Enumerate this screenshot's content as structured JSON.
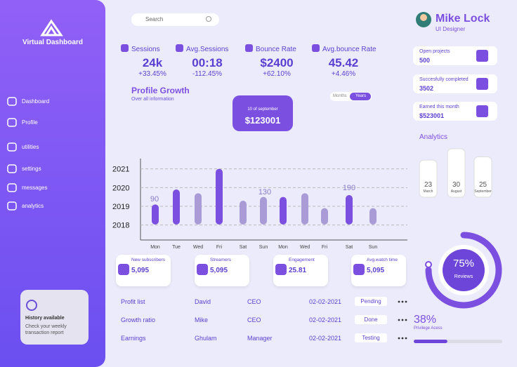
{
  "sidebar": {
    "brand": "Virtual Dashboard",
    "nav": [
      "Dashboard",
      "Profile",
      "utilities",
      "settings",
      "messages",
      "analytics"
    ],
    "history": {
      "title": "History available",
      "text": "Check your weekly transaction report"
    }
  },
  "search": {
    "placeholder": "Search"
  },
  "stats": [
    {
      "label": "Sessions",
      "value": "24k",
      "change": "+33.45%"
    },
    {
      "label": "Avg.Sessions",
      "value": "00:18",
      "change": "-112.45%"
    },
    {
      "label": "Bounce Rate",
      "value": "$2400",
      "change": "+62.10%"
    },
    {
      "label": "Avg.bounce Rate",
      "value": "45.42",
      "change": "+4.46%"
    }
  ],
  "profile_growth": {
    "title": "Profile Growth",
    "subtitle": "Over all information",
    "toggle": [
      "Months",
      "Years"
    ],
    "tooltip": {
      "date": "10 of september",
      "value": "$123001"
    }
  },
  "chart_data": {
    "type": "bar",
    "categories": [
      "Mon",
      "Tue",
      "Wed",
      "Fri",
      "Sat",
      "Sun",
      "Mon",
      "Wed",
      "Fri",
      "Sat",
      "Sun"
    ],
    "values": [
      2019.1,
      2019.9,
      2019.7,
      2021.0,
      2019.3,
      2019.5,
      2019.5,
      2019.7,
      2018.9,
      2019.6,
      2018.9
    ],
    "colors": [
      "#7b4fe0",
      "#7b4fe0",
      "#a99bd6",
      "#7b4fe0",
      "#a99bd6",
      "#a99bd6",
      "#7b4fe0",
      "#a99bd6",
      "#a99bd6",
      "#7b4fe0",
      "#a99bd6"
    ],
    "ylim": [
      2017.2,
      2021.55
    ],
    "yticks": [
      2018,
      2019,
      2020,
      2021
    ],
    "grid": true,
    "annotations": [
      "90",
      "130",
      "190"
    ]
  },
  "metrics": [
    {
      "title": "New subscribers",
      "value": "5,095"
    },
    {
      "title": "Streamers",
      "value": "5,095"
    },
    {
      "title": "Engagement",
      "value": "25.81"
    },
    {
      "title": "Avg.watch time",
      "value": "5,095"
    }
  ],
  "table": {
    "rows": [
      [
        "Profit list",
        "David",
        "CEO",
        "02-02-2021",
        "Pending"
      ],
      [
        "Growth ratio",
        "Mike",
        "CEO",
        "02-02-2021",
        "Done"
      ],
      [
        "Earnings",
        "Ghulam",
        "Manager",
        "02-02-2021",
        "Testing"
      ]
    ]
  },
  "profile": {
    "name": "Mike Lock",
    "role": "UI Designer"
  },
  "summary": [
    {
      "label": "Open projects",
      "value": "500"
    },
    {
      "label": "Succesfully completed",
      "value": "3502"
    },
    {
      "label": "Earned this month",
      "value": "$523001"
    }
  ],
  "analytics": {
    "title": "Analytics",
    "bars": [
      {
        "value": 23,
        "label": "March"
      },
      {
        "value": 30,
        "label": "August"
      },
      {
        "value": 25,
        "label": "September"
      }
    ]
  },
  "reviews": {
    "value": 75,
    "value_label": "75%",
    "label": "Reviews"
  },
  "privilege": {
    "value": 38,
    "value_label": "38%",
    "label": "Privilege Acess"
  }
}
